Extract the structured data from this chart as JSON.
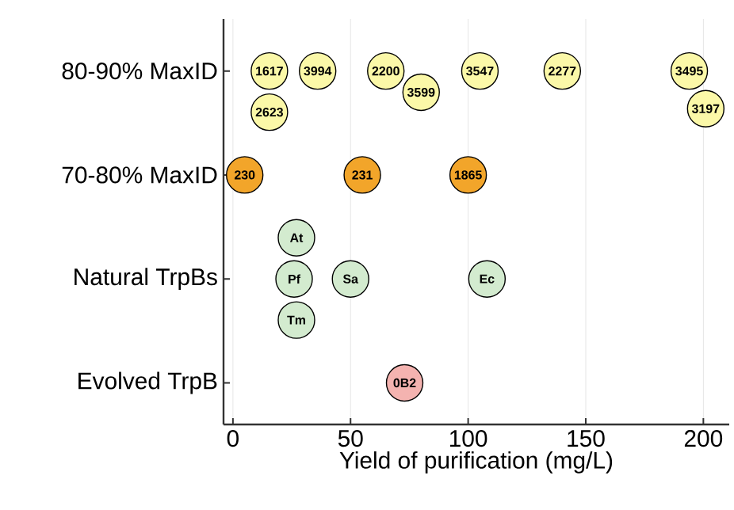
{
  "chart_data": {
    "type": "scatter",
    "orientation": "horizontal",
    "xlabel": "Yield of purification (mg/L)",
    "xlim": [
      -4,
      211
    ],
    "xticks": [
      0,
      50,
      100,
      150,
      200
    ],
    "categories": [
      "80-90% MaxID",
      "70-80% MaxID",
      "Natural TrpBs",
      "Evolved TrpB"
    ],
    "grid": "x",
    "marker": "circle",
    "series": [
      {
        "color": "#fbf8a8",
        "x": [
          "80-90% MaxID",
          "80-90% MaxID",
          "80-90% MaxID",
          "80-90% MaxID",
          "80-90% MaxID",
          "80-90% MaxID",
          "80-90% MaxID",
          "80-90% MaxID",
          "80-90% MaxID"
        ],
        "values": [
          15.5,
          36,
          65,
          80,
          105,
          140,
          194,
          201,
          15.5
        ]
      },
      {
        "color": "#f2a52a",
        "x": [
          "70-80% MaxID",
          "70-80% MaxID",
          "70-80% MaxID"
        ],
        "values": [
          5,
          55,
          100
        ]
      },
      {
        "color": "#d3ebcf",
        "x": [
          "Natural TrpBs",
          "Natural TrpBs",
          "Natural TrpBs",
          "Natural TrpBs",
          "Natural TrpBs"
        ],
        "values": [
          26,
          27,
          50,
          108,
          27
        ]
      },
      {
        "color": "#f4b3b0",
        "x": [
          "Evolved TrpB"
        ],
        "values": [
          73
        ]
      }
    ],
    "annotations": [
      {
        "text": "1617",
        "x": 15.5,
        "y": "80-90% MaxID"
      },
      {
        "text": "3994",
        "x": 36,
        "y": "80-90% MaxID"
      },
      {
        "text": "2200",
        "x": 65,
        "y": "80-90% MaxID"
      },
      {
        "text": "3599",
        "x": 80,
        "y": "80-90% MaxID"
      },
      {
        "text": "3547",
        "x": 105,
        "y": "80-90% MaxID"
      },
      {
        "text": "2277",
        "x": 140,
        "y": "80-90% MaxID"
      },
      {
        "text": "3495",
        "x": 194,
        "y": "80-90% MaxID"
      },
      {
        "text": "3197",
        "x": 201,
        "y": "80-90% MaxID"
      },
      {
        "text": "2623",
        "x": 15.5,
        "y": "80-90% MaxID"
      },
      {
        "text": "230",
        "x": 5,
        "y": "70-80% MaxID"
      },
      {
        "text": "231",
        "x": 55,
        "y": "70-80% MaxID"
      },
      {
        "text": "1865",
        "x": 100,
        "y": "70-80% MaxID"
      },
      {
        "text": "Pf",
        "x": 26,
        "y": "Natural TrpBs"
      },
      {
        "text": "Tm",
        "x": 27,
        "y": "Natural TrpBs"
      },
      {
        "text": "Sa",
        "x": 50,
        "y": "Natural TrpBs"
      },
      {
        "text": "Ec",
        "x": 108,
        "y": "Natural TrpBs"
      },
      {
        "text": "At",
        "x": 27,
        "y": "Natural TrpBs"
      },
      {
        "text": "0B2",
        "x": 73,
        "y": "Evolved TrpB"
      }
    ]
  }
}
